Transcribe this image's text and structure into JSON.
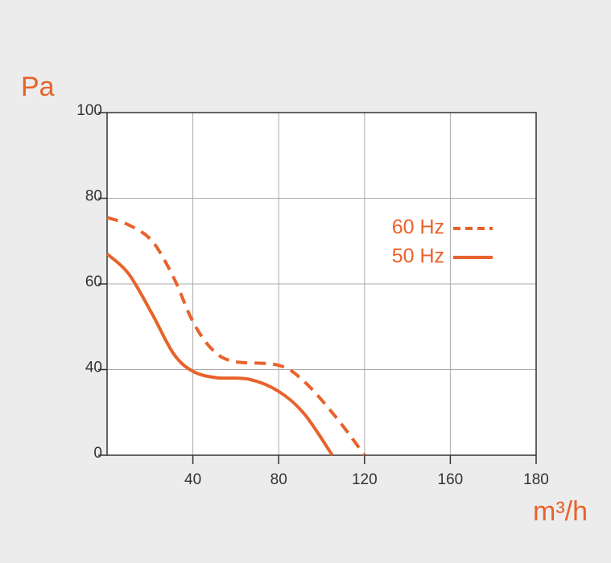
{
  "chart_data": {
    "type": "line",
    "y_label": "Pa",
    "x_label": "m³/h",
    "xlim": [
      0,
      180
    ],
    "xticks": [
      40,
      80,
      120,
      160,
      180
    ],
    "ylim": [
      0,
      100
    ],
    "yticks": [
      0,
      40,
      60,
      80,
      100
    ],
    "grid": true,
    "legend": "right",
    "series": [
      {
        "name": "60 Hz",
        "color": "#e8622c",
        "style": "dashed",
        "x": [
          0,
          10,
          21,
          31,
          40,
          49,
          59,
          80,
          92,
          107,
          120
        ],
        "values": [
          75.5,
          73.8,
          70,
          61.5,
          51.2,
          44.7,
          41.9,
          41,
          34.3,
          17.4,
          0
        ]
      },
      {
        "name": "50 Hz",
        "color": "#e8622c",
        "style": "solid",
        "x": [
          0,
          10,
          21,
          31,
          40,
          51,
          66,
          80,
          92,
          105
        ],
        "values": [
          67,
          62.4,
          53,
          43.7,
          39.2,
          36.2,
          35.5,
          29.8,
          19.2,
          0
        ]
      }
    ]
  }
}
